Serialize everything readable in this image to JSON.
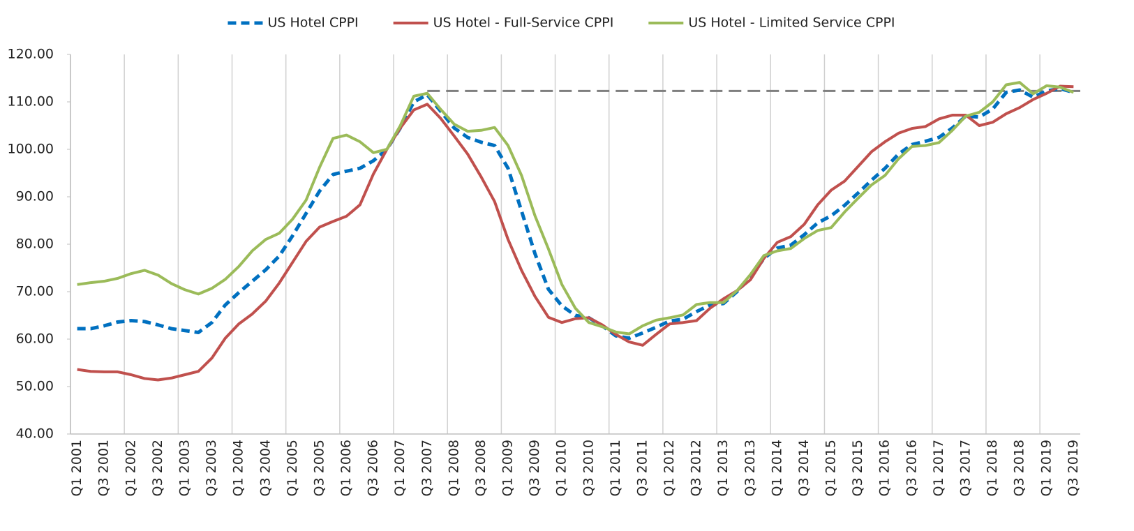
{
  "chart_data": {
    "type": "line",
    "categories": [
      "Q1 2001",
      null,
      "Q3 2001",
      null,
      "Q1 2002",
      null,
      "Q3 2002",
      null,
      "Q1 2003",
      null,
      "Q3 2003",
      null,
      "Q1 2004",
      null,
      "Q3 2004",
      null,
      "Q1 2005",
      null,
      "Q3 2005",
      null,
      "Q1 2006",
      null,
      "Q3 2006",
      null,
      "Q1 2007",
      null,
      "Q3 2007",
      null,
      "Q1 2008",
      null,
      "Q3 2008",
      null,
      "Q1 2009",
      null,
      "Q3 2009",
      null,
      "Q1 2010",
      null,
      "Q3 2010",
      null,
      "Q1 2011",
      null,
      "Q3 2011",
      null,
      "Q1 2012",
      null,
      "Q3 2012",
      null,
      "Q1 2013",
      null,
      "Q3 2013",
      null,
      "Q1 2014",
      null,
      "Q3 2014",
      null,
      "Q1 2015",
      null,
      "Q3 2015",
      null,
      "Q1 2016",
      null,
      "Q3 2016",
      null,
      "Q1 2017",
      null,
      "Q3 2017",
      null,
      "Q1 2018",
      null,
      "Q3 2018",
      null,
      "Q1 2019",
      null,
      "Q3 2019"
    ],
    "series": [
      {
        "name": "US Hotel CPPI",
        "color": "#0070c0",
        "dashed": true,
        "values": [
          62.2,
          62.2,
          62.8,
          63.6,
          63.9,
          63.7,
          63.0,
          62.2,
          61.8,
          61.4,
          63.5,
          67.2,
          69.8,
          72.2,
          74.6,
          77.5,
          81.8,
          86.5,
          91.2,
          94.7,
          95.4,
          96.0,
          97.6,
          100.0,
          104.5,
          110.0,
          111.5,
          108.0,
          104.5,
          102.5,
          101.5,
          100.8,
          96.0,
          87.0,
          78.0,
          70.5,
          67.0,
          65.0,
          64.5,
          62.8,
          60.7,
          60.2,
          61.3,
          62.5,
          63.8,
          64.2,
          65.8,
          67.2,
          67.5,
          70.0,
          73.0,
          77.0,
          79.2,
          79.8,
          82.0,
          84.5,
          86.0,
          88.2,
          90.8,
          93.5,
          96.0,
          99.0,
          101.0,
          101.7,
          102.5,
          104.5,
          107.0,
          106.8,
          108.5,
          112.0,
          112.5,
          111.0,
          112.3,
          112.8,
          112.0
        ]
      },
      {
        "name": "US Hotel - Full-Service CPPI",
        "color": "#c0504d",
        "dashed": false,
        "values": [
          53.6,
          53.2,
          53.1,
          53.1,
          52.5,
          51.7,
          51.4,
          51.8,
          52.5,
          53.2,
          56.0,
          60.2,
          63.2,
          65.3,
          68.0,
          71.8,
          76.2,
          80.6,
          83.6,
          84.8,
          85.9,
          88.3,
          94.8,
          100.0,
          104.5,
          108.3,
          109.5,
          106.5,
          102.8,
          99.0,
          94.2,
          89.0,
          81.0,
          74.5,
          69.0,
          64.6,
          63.5,
          64.3,
          64.5,
          63.0,
          61.0,
          59.4,
          58.7,
          61.0,
          63.2,
          63.5,
          63.9,
          66.5,
          68.5,
          70.2,
          72.5,
          77.0,
          80.4,
          81.6,
          84.2,
          88.3,
          91.4,
          93.3,
          96.4,
          99.5,
          101.6,
          103.4,
          104.4,
          104.8,
          106.4,
          107.2,
          107.2,
          105.0,
          105.7,
          107.5,
          108.8,
          110.5,
          111.8,
          113.3,
          113.2
        ]
      },
      {
        "name": "US Hotel - Limited Service CPPI",
        "color": "#9bbb59",
        "dashed": false,
        "values": [
          71.5,
          71.9,
          72.2,
          72.8,
          73.8,
          74.5,
          73.5,
          71.7,
          70.4,
          69.5,
          70.7,
          72.6,
          75.3,
          78.6,
          81.0,
          82.3,
          85.3,
          89.3,
          96.2,
          102.3,
          103.0,
          101.6,
          99.3,
          100.0,
          105.0,
          111.2,
          111.8,
          108.4,
          105.3,
          103.8,
          104.0,
          104.6,
          100.8,
          94.5,
          86.0,
          79.0,
          71.5,
          66.5,
          63.5,
          62.6,
          61.5,
          61.1,
          62.8,
          64.0,
          64.5,
          65.1,
          67.3,
          67.7,
          67.7,
          70.2,
          73.6,
          77.6,
          78.6,
          79.1,
          81.2,
          82.9,
          83.5,
          86.8,
          89.7,
          92.5,
          94.5,
          98.0,
          100.6,
          100.8,
          101.4,
          104.0,
          107.0,
          107.8,
          110.0,
          113.6,
          114.1,
          111.7,
          113.4,
          113.1,
          112.0
        ]
      }
    ],
    "reference_line": {
      "value": 112.3,
      "start": "Q3 2007",
      "color": "#7f7f7f",
      "dashed": true
    },
    "ylim": [
      40,
      120
    ],
    "yticks": [
      {
        "value": 40,
        "label": "40.00"
      },
      {
        "value": 50,
        "label": "50.00"
      },
      {
        "value": 60,
        "label": "60.00"
      },
      {
        "value": 70,
        "label": "70.00"
      },
      {
        "value": 80,
        "label": "80.00"
      },
      {
        "value": 90,
        "label": "90.00"
      },
      {
        "value": 100,
        "label": "100.00"
      },
      {
        "value": 110,
        "label": "110.00"
      },
      {
        "value": 120,
        "label": "120.00"
      }
    ],
    "grid": "x",
    "legend": "top"
  }
}
